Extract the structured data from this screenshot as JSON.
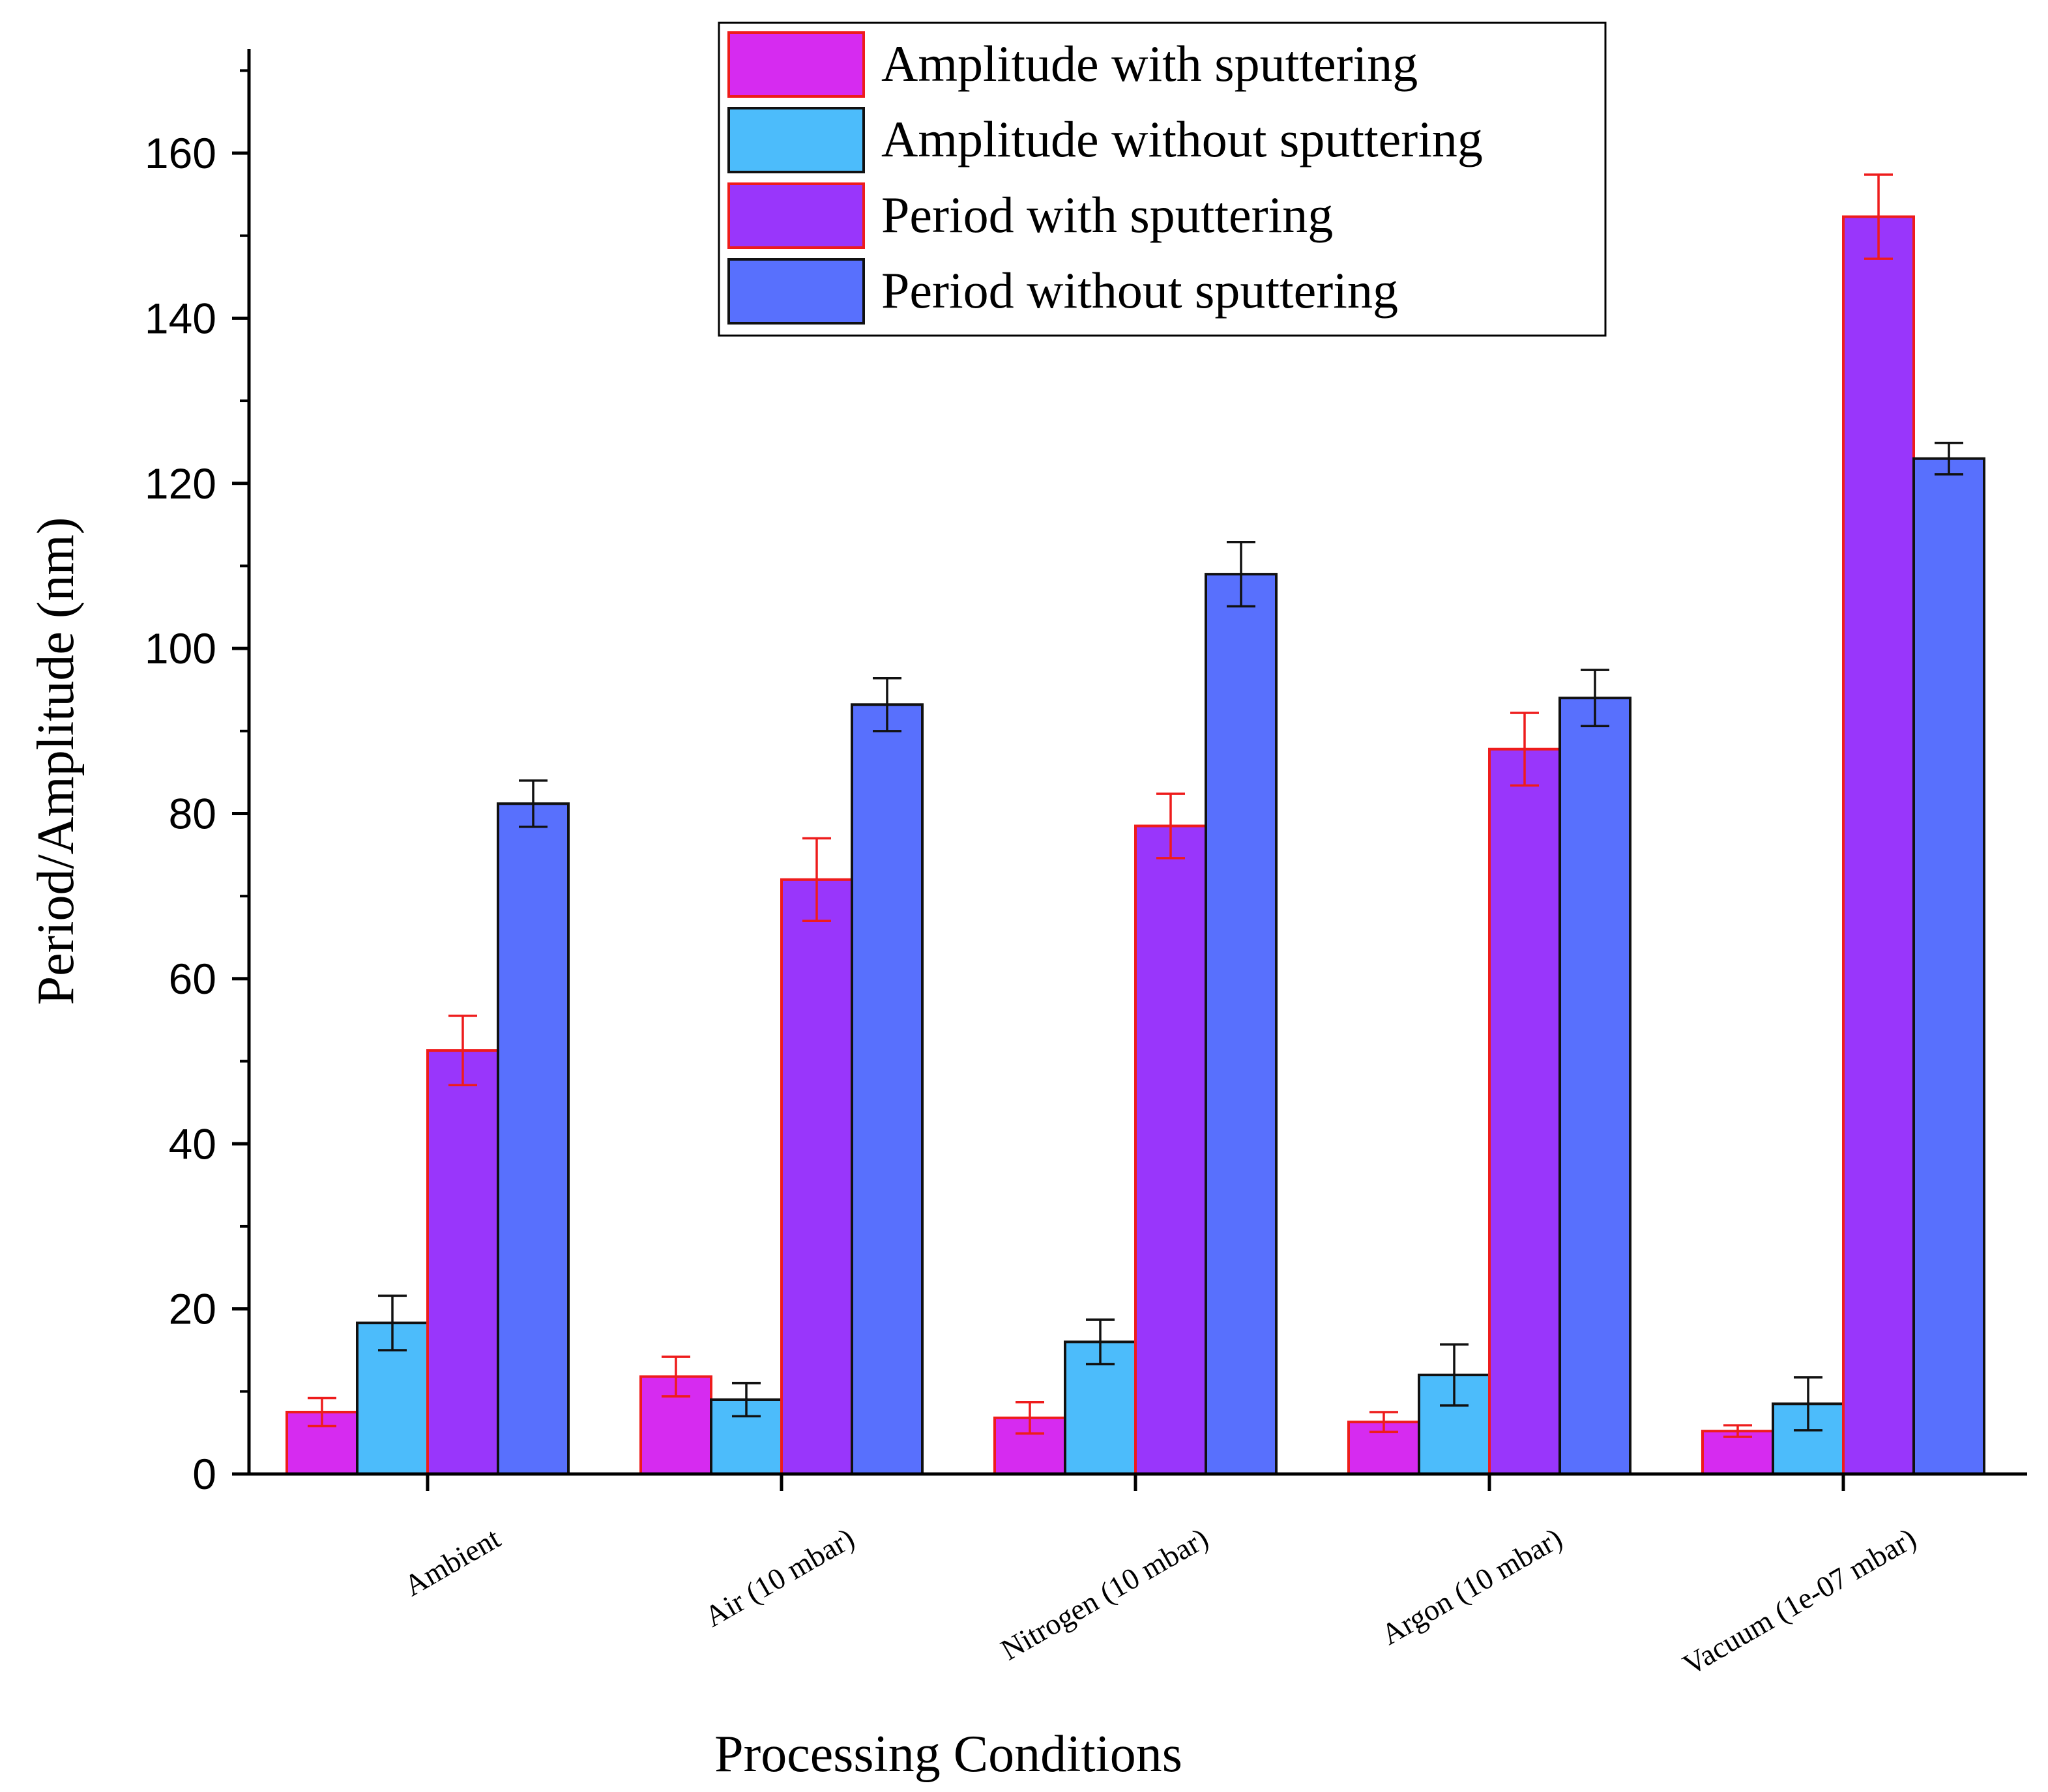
{
  "chart_data": {
    "type": "bar",
    "title": "",
    "xlabel": "Processing Conditions",
    "ylabel": "Period/Amplitude (nm)",
    "ylim": [
      0,
      172
    ],
    "yticks": [
      0,
      20,
      40,
      60,
      80,
      100,
      120,
      140,
      160
    ],
    "grid": false,
    "legend_position": "top-center",
    "categories": [
      "Ambient",
      "Air (10  mbar)",
      "Nitrogen (10  mbar)",
      "Argon (10  mbar)",
      "Vacuum (1e-07 mbar)"
    ],
    "series": [
      {
        "name": "Amplitude with sputtering",
        "color": "#d62bf0",
        "edge": "#ee1c1c",
        "values": [
          7.5,
          11.8,
          6.8,
          6.3,
          5.2
        ],
        "errors": [
          1.7,
          2.4,
          1.9,
          1.2,
          0.7
        ]
      },
      {
        "name": "Amplitude without sputtering",
        "color": "#4cbcfb",
        "edge": "#111111",
        "values": [
          18.3,
          9.0,
          16.0,
          12.0,
          8.5
        ],
        "errors": [
          3.3,
          2.0,
          2.7,
          3.7,
          3.2
        ]
      },
      {
        "name": "Period with sputtering",
        "color": "#9936fb",
        "edge": "#ee1c1c",
        "values": [
          51.3,
          72.0,
          78.5,
          87.8,
          152.3
        ],
        "errors": [
          4.2,
          5.0,
          3.9,
          4.4,
          5.1
        ]
      },
      {
        "name": "Period without sputtering",
        "color": "#5870fd",
        "edge": "#111111",
        "values": [
          81.2,
          93.2,
          109.0,
          94.0,
          123.0
        ],
        "errors": [
          2.8,
          3.2,
          3.9,
          3.4,
          1.9
        ]
      }
    ]
  }
}
